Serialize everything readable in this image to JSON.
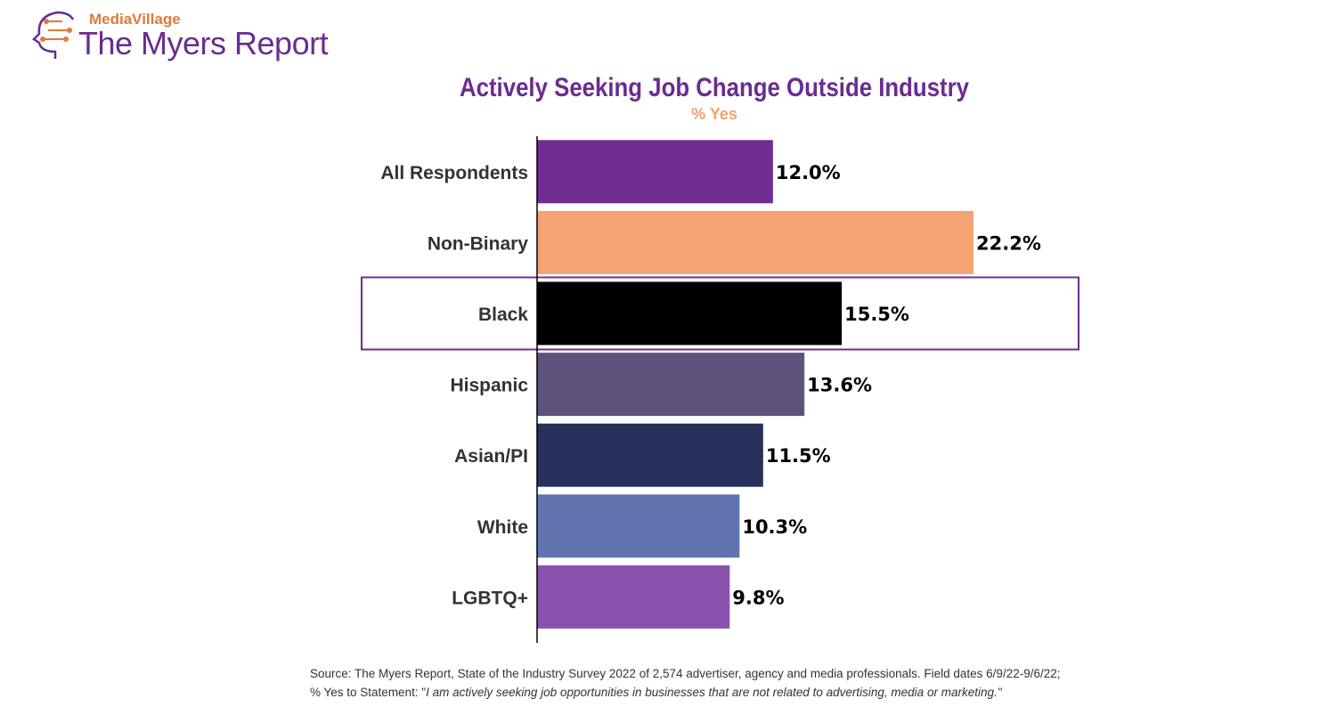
{
  "logo": {
    "top_text": "MediaVillage",
    "main_text": "The Myers Report"
  },
  "chart_data": {
    "type": "bar",
    "orientation": "horizontal",
    "title": "Actively Seeking Job Change Outside Industry",
    "subtitle": "% Yes",
    "categories": [
      "All Respondents",
      "Non-Binary",
      "Black",
      "Hispanic",
      "Asian/PI",
      "White",
      "LGBTQ+"
    ],
    "values": [
      12.0,
      22.2,
      15.5,
      13.6,
      11.5,
      10.3,
      9.8
    ],
    "value_labels": [
      "12.0%",
      "22.2%",
      "15.5%",
      "13.6%",
      "11.5%",
      "10.3%",
      "9.8%"
    ],
    "colors": [
      "#6f2c91",
      "#f4a373",
      "#000000",
      "#5e527d",
      "#26315b",
      "#6274b0",
      "#8b52ad"
    ],
    "highlighted": "Black",
    "highlight_color": "#6f2c91",
    "xlim": [
      0,
      25
    ],
    "xlabel": "",
    "ylabel": "",
    "grid": false
  },
  "footnote": {
    "line1": "Source:  The Myers Report, State of the Industry Survey 2022 of 2,574 advertiser, agency and media professionals.  Field dates 6/9/22-9/6/22;",
    "line2_prefix": "% Yes to Statement: \"",
    "line2_quote": "I am actively seeking job opportunities in businesses that are not related to advertising, media or marketing.\""
  }
}
